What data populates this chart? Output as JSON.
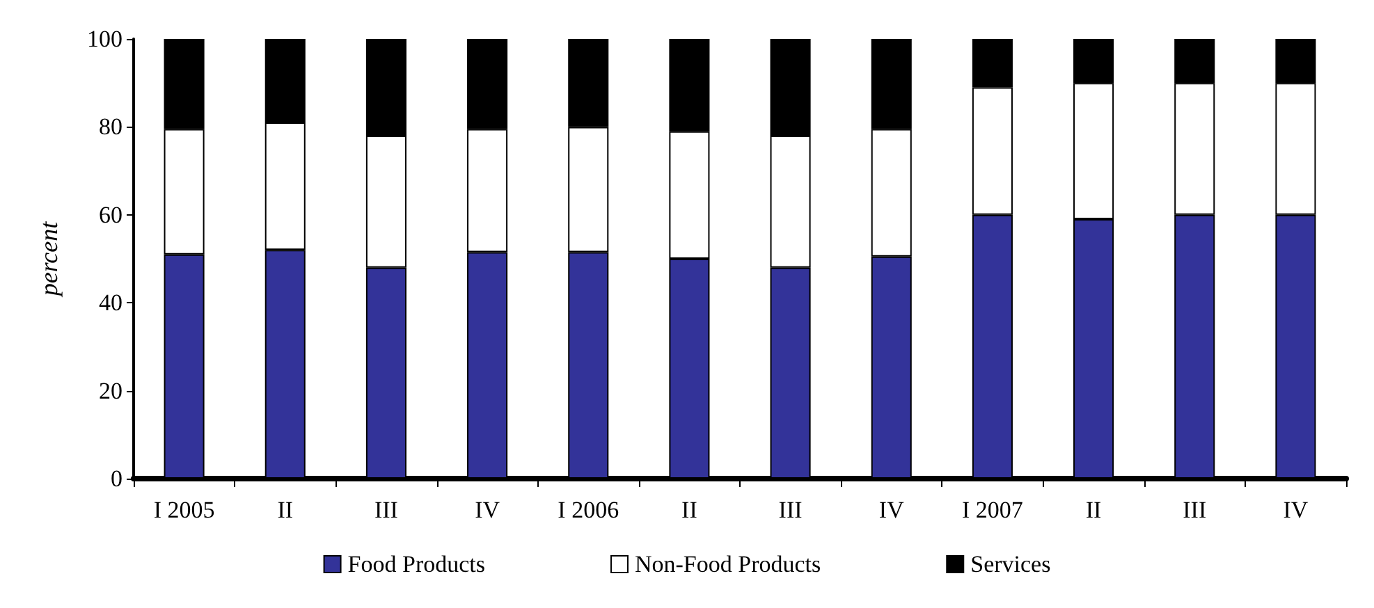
{
  "chart_data": {
    "type": "bar",
    "stacked": true,
    "ylabel": "percent",
    "categories": [
      "I 2005",
      "II",
      "III",
      "IV",
      "I 2006",
      "II",
      "III",
      "IV",
      "I 2007",
      "II",
      "III",
      "IV"
    ],
    "series": [
      {
        "name": "Food Products",
        "color": "#333399",
        "values": [
          51,
          52,
          48,
          51.5,
          51.5,
          50,
          48,
          50.5,
          60,
          59,
          60,
          60
        ]
      },
      {
        "name": "Non-Food Products",
        "color": "#ffffff",
        "values": [
          28.5,
          29,
          30,
          28,
          28.5,
          29,
          30,
          29,
          29,
          31,
          30,
          30
        ]
      },
      {
        "name": "Services",
        "color": "#000000",
        "values": [
          20.5,
          19,
          22,
          20.5,
          20,
          21,
          22,
          20.5,
          11,
          10,
          10,
          10
        ]
      }
    ],
    "ylim": [
      0,
      100
    ],
    "yticks": [
      0,
      20,
      40,
      60,
      80,
      100
    ],
    "grid": false,
    "legend": "bottom"
  }
}
